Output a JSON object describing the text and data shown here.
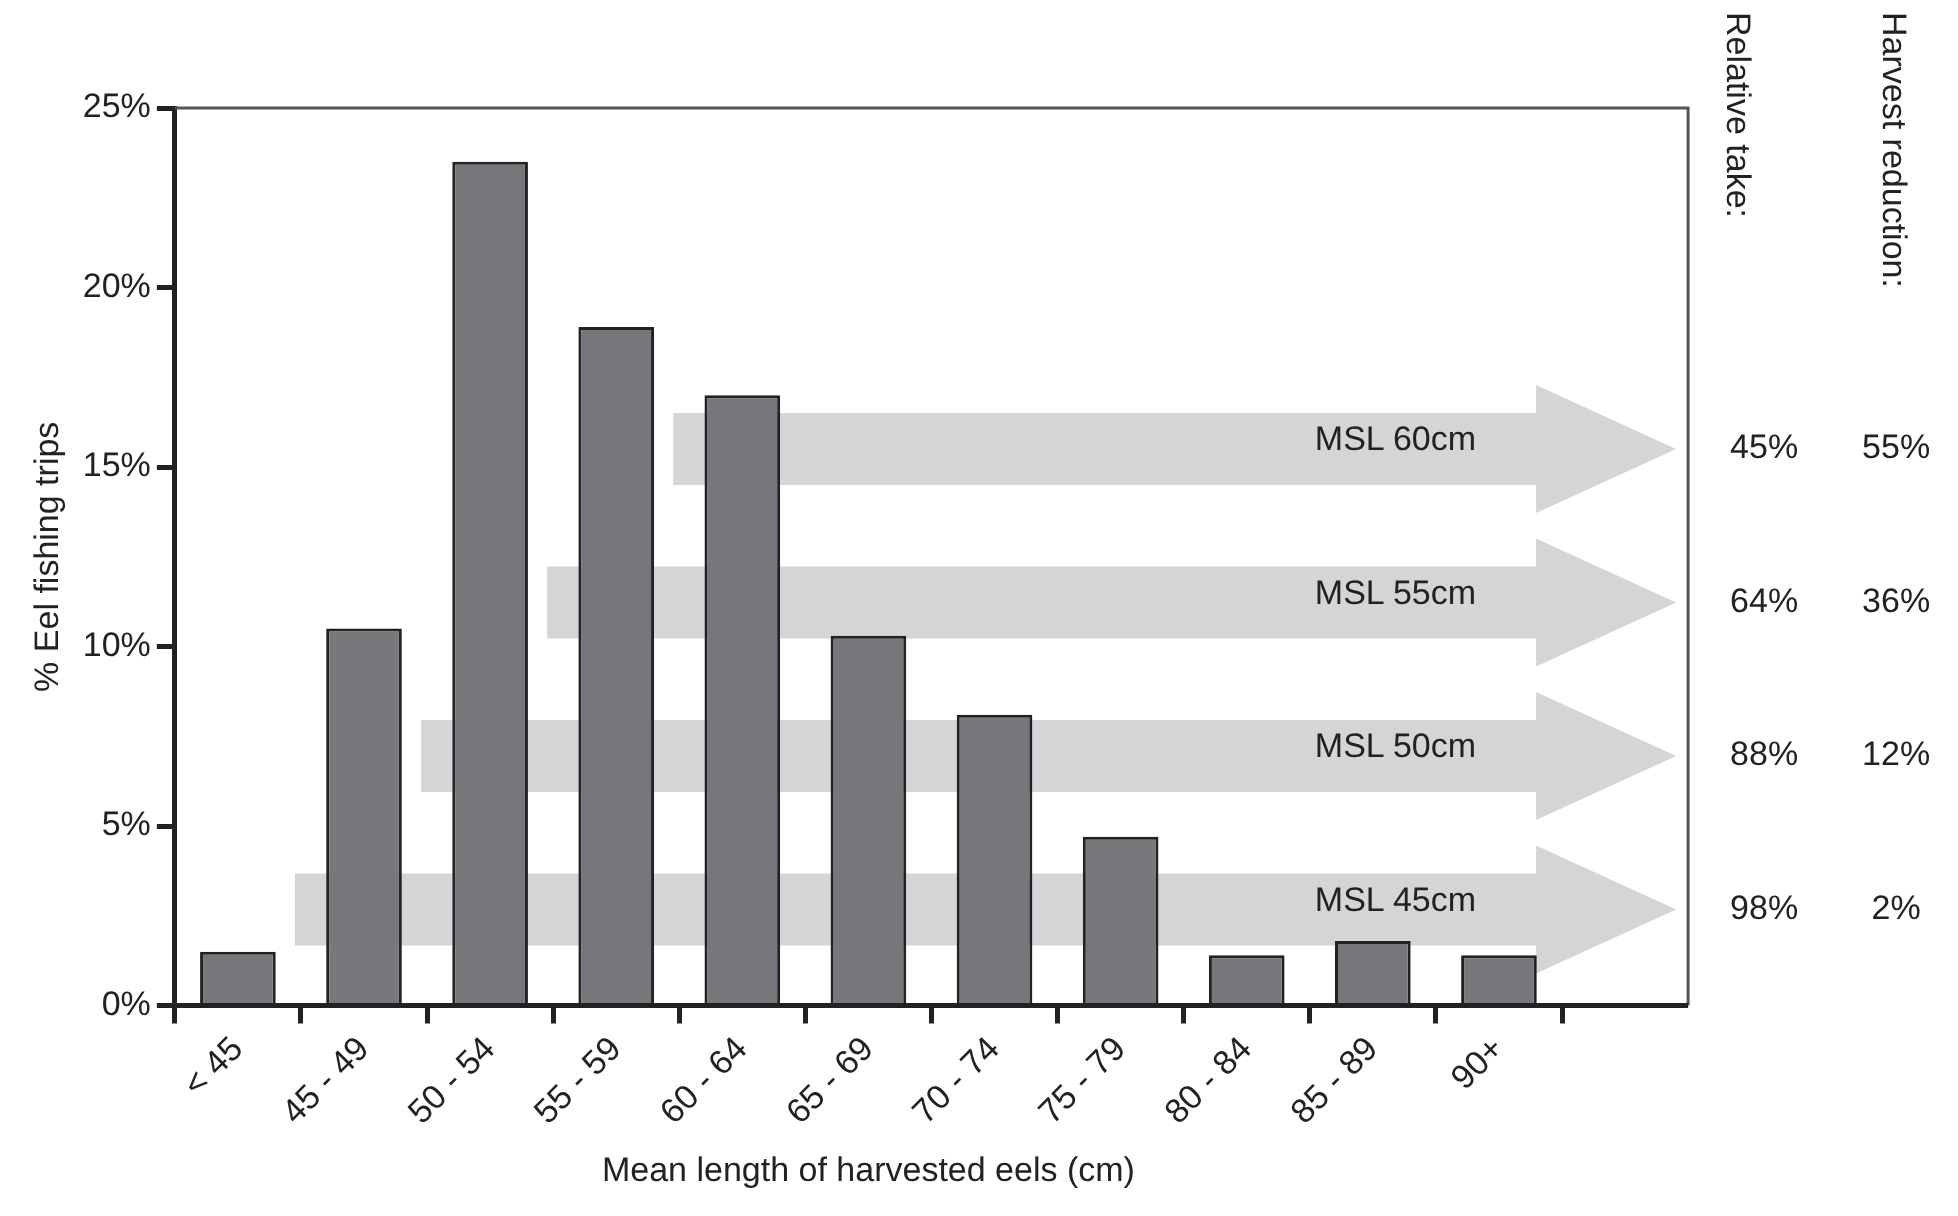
{
  "chart_data": {
    "type": "bar",
    "xlabel": "Mean length of harvested eels (cm)",
    "ylabel": "% Eel fishing trips",
    "categories": [
      "< 45",
      "45 - 49",
      "50 - 54",
      "55 - 59",
      "60 - 64",
      "65 - 69",
      "70 - 74",
      "75 - 79",
      "80 - 84",
      "85 - 89",
      "90+"
    ],
    "values": [
      1.5,
      10.5,
      23.5,
      18.9,
      17.0,
      10.3,
      8.1,
      4.7,
      1.4,
      1.8,
      1.4
    ],
    "color": "#76777b",
    "ylim": [
      0,
      25
    ],
    "yticks": [
      {
        "value": 0,
        "label": "0%"
      },
      {
        "value": 5,
        "label": "5%"
      },
      {
        "value": 10,
        "label": "10%"
      },
      {
        "value": 15,
        "label": "15%"
      },
      {
        "value": 20,
        "label": "20%"
      },
      {
        "value": 25,
        "label": "25%"
      }
    ],
    "grid": false,
    "legend": false,
    "annotations": [
      "Relative take:",
      "Harvest reduction:",
      "MSL 60cm",
      "45%",
      "55%",
      "MSL 55cm",
      "64%",
      "36%",
      "MSL 50cm",
      "88%",
      "12%",
      "MSL 45cm",
      "98%",
      "2%"
    ]
  }
}
